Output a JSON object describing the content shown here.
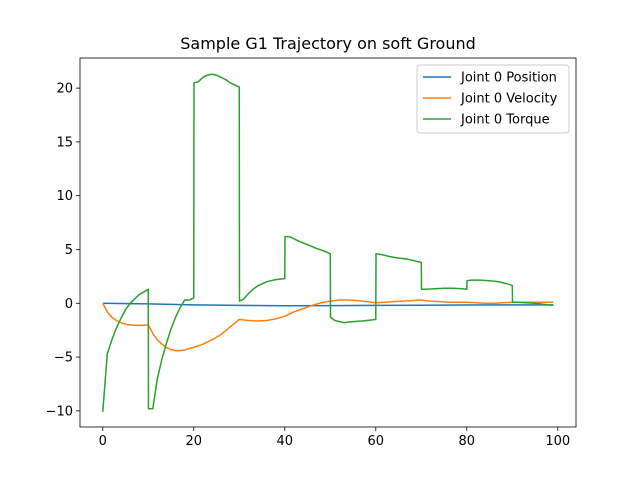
{
  "chart_data": {
    "type": "line",
    "title": "Sample G1 Trajectory on soft Ground",
    "xlabel": "",
    "ylabel": "",
    "xlim": [
      -5,
      104
    ],
    "ylim": [
      -11.5,
      22.8
    ],
    "xticks": [
      0,
      20,
      40,
      60,
      80,
      100
    ],
    "yticks": [
      -10,
      -5,
      0,
      5,
      10,
      15,
      20
    ],
    "legend_position": "top-right",
    "grid": false,
    "series": [
      {
        "name": "Joint 0 Position",
        "color": "#1f77b4",
        "x": [
          0,
          10,
          20,
          30,
          40,
          50,
          60,
          70,
          80,
          90,
          99
        ],
        "y": [
          0.0,
          -0.05,
          -0.15,
          -0.2,
          -0.23,
          -0.22,
          -0.2,
          -0.18,
          -0.16,
          -0.15,
          -0.15
        ]
      },
      {
        "name": "Joint 0 Velocity",
        "color": "#ff7f0e",
        "x": [
          0,
          1,
          2,
          3,
          4,
          5,
          6,
          7,
          8,
          9,
          10,
          11,
          12,
          13,
          14,
          15,
          16,
          17,
          18,
          19,
          20,
          22,
          24,
          26,
          28,
          30,
          32,
          34,
          36,
          38,
          40,
          42,
          44,
          46,
          48,
          50,
          52,
          54,
          56,
          58,
          60,
          62,
          64,
          66,
          68,
          70,
          72,
          74,
          76,
          78,
          80,
          82,
          84,
          86,
          88,
          90,
          92,
          94,
          96,
          98,
          99
        ],
        "y": [
          0.0,
          -0.8,
          -1.3,
          -1.6,
          -1.8,
          -1.95,
          -2.0,
          -2.05,
          -2.05,
          -2.05,
          -2.0,
          -2.8,
          -3.4,
          -3.8,
          -4.1,
          -4.3,
          -4.4,
          -4.4,
          -4.35,
          -4.2,
          -4.1,
          -3.8,
          -3.4,
          -2.9,
          -2.2,
          -1.5,
          -1.6,
          -1.65,
          -1.6,
          -1.45,
          -1.2,
          -0.8,
          -0.5,
          -0.2,
          0.05,
          0.2,
          0.3,
          0.3,
          0.25,
          0.15,
          0.05,
          0.1,
          0.15,
          0.2,
          0.25,
          0.3,
          0.2,
          0.15,
          0.1,
          0.1,
          0.1,
          0.05,
          0.0,
          0.0,
          0.05,
          0.1,
          0.1,
          0.1,
          0.1,
          0.1,
          0.1
        ]
      },
      {
        "name": "Joint 0 Torque",
        "color": "#2ca02c",
        "x": [
          0,
          1,
          2,
          3,
          4,
          5,
          6,
          7,
          8,
          9,
          10,
          10.05,
          11,
          12,
          13,
          14,
          15,
          16,
          17,
          18,
          19,
          20,
          20.05,
          21,
          22,
          23,
          24,
          25,
          26,
          27,
          28,
          29,
          30,
          30.05,
          31,
          32,
          33,
          34,
          35,
          36,
          37,
          38,
          39,
          40,
          40.05,
          41,
          43,
          45,
          47,
          49,
          50,
          50.05,
          51,
          53,
          55,
          57,
          59,
          60,
          60.05,
          61,
          63,
          65,
          67,
          69,
          70,
          70.05,
          71,
          73,
          75,
          77,
          79,
          80,
          80.05,
          81,
          83,
          85,
          87,
          89,
          90,
          90.05,
          91,
          93,
          95,
          97,
          99
        ],
        "y": [
          -10.1,
          -4.7,
          -3.4,
          -2.3,
          -1.4,
          -0.6,
          0.0,
          0.4,
          0.8,
          1.05,
          1.3,
          -9.8,
          -9.8,
          -7.0,
          -5.2,
          -3.7,
          -2.4,
          -1.3,
          -0.4,
          0.3,
          0.3,
          0.5,
          20.5,
          20.6,
          21.0,
          21.2,
          21.3,
          21.2,
          21.0,
          20.8,
          20.5,
          20.3,
          20.1,
          0.2,
          0.4,
          0.9,
          1.3,
          1.6,
          1.8,
          2.0,
          2.1,
          2.2,
          2.25,
          2.3,
          6.2,
          6.2,
          5.8,
          5.45,
          5.1,
          4.8,
          4.6,
          -1.3,
          -1.6,
          -1.8,
          -1.7,
          -1.65,
          -1.55,
          -1.5,
          4.6,
          4.55,
          4.35,
          4.2,
          4.1,
          3.9,
          3.8,
          1.3,
          1.3,
          1.35,
          1.4,
          1.4,
          1.35,
          1.3,
          2.1,
          2.15,
          2.15,
          2.1,
          2.0,
          1.8,
          1.65,
          0.1,
          0.1,
          0.05,
          0.0,
          -0.1,
          -0.2
        ]
      }
    ]
  }
}
